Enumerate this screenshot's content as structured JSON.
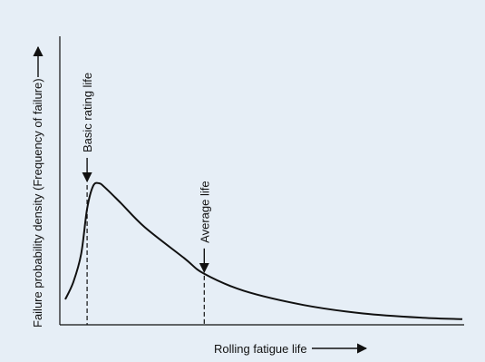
{
  "colors": {
    "panel_background": "#e6eef6",
    "ink": "#111111"
  },
  "chart_data": {
    "type": "line",
    "title": "",
    "xlabel": "Rolling fatigue life",
    "ylabel": "Failure probability density (Frequency of failure)",
    "x_ticks": "none",
    "y_ticks": "none",
    "grid": false,
    "legend": "none",
    "series": [
      {
        "style": "solid curve (Weibull-type failure density)",
        "x": [
          0.0,
          0.02,
          0.04,
          0.055,
          0.07,
          0.085,
          0.1,
          0.14,
          0.2,
          0.3,
          0.35,
          0.45,
          0.6,
          0.75,
          0.9,
          1.0
        ],
        "y": [
          0.18,
          0.3,
          0.5,
          0.82,
          0.98,
          1.0,
          0.97,
          0.86,
          0.69,
          0.47,
          0.36,
          0.24,
          0.14,
          0.08,
          0.05,
          0.04
        ]
      }
    ],
    "annotations": [
      {
        "text": "Basic rating life",
        "x": 0.055,
        "y": 1.0,
        "marker": "vertical dashed line with downward arrow"
      },
      {
        "text": "Average life",
        "x": 0.35,
        "y": 0.36,
        "marker": "vertical dashed line with downward arrow"
      }
    ],
    "axis_arrows": {
      "x": "right",
      "y": "up"
    }
  }
}
